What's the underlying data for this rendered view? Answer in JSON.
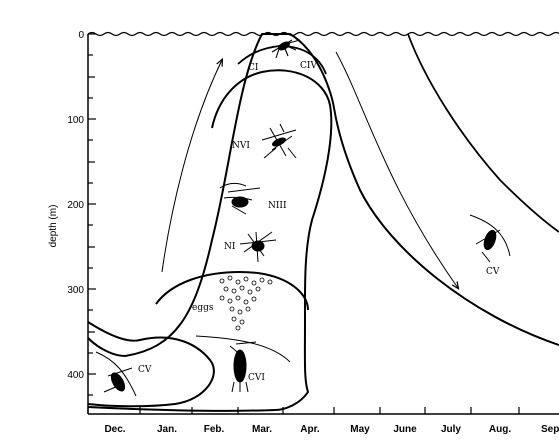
{
  "axes": {
    "ylabel": "depth (m)",
    "y_ticks": [
      "0",
      "100",
      "200",
      "300",
      "400"
    ],
    "months": [
      "Dec.",
      "Jan.",
      "Feb.",
      "Mar.",
      "Apr.",
      "May",
      "June",
      "July",
      "Aug.",
      "Sept"
    ]
  },
  "labels": {
    "ci": "CI",
    "civ": "CIV",
    "nvi": "NVI",
    "niii": "NIII",
    "ni": "NI",
    "eggs": "eggs",
    "cv_left": "CV",
    "cvi": "CVI",
    "cv_right": "CV"
  },
  "icons": [
    "copepod-icon",
    "nauplius-icon",
    "egg-cluster-icon",
    "migration-arrow-icon"
  ]
}
